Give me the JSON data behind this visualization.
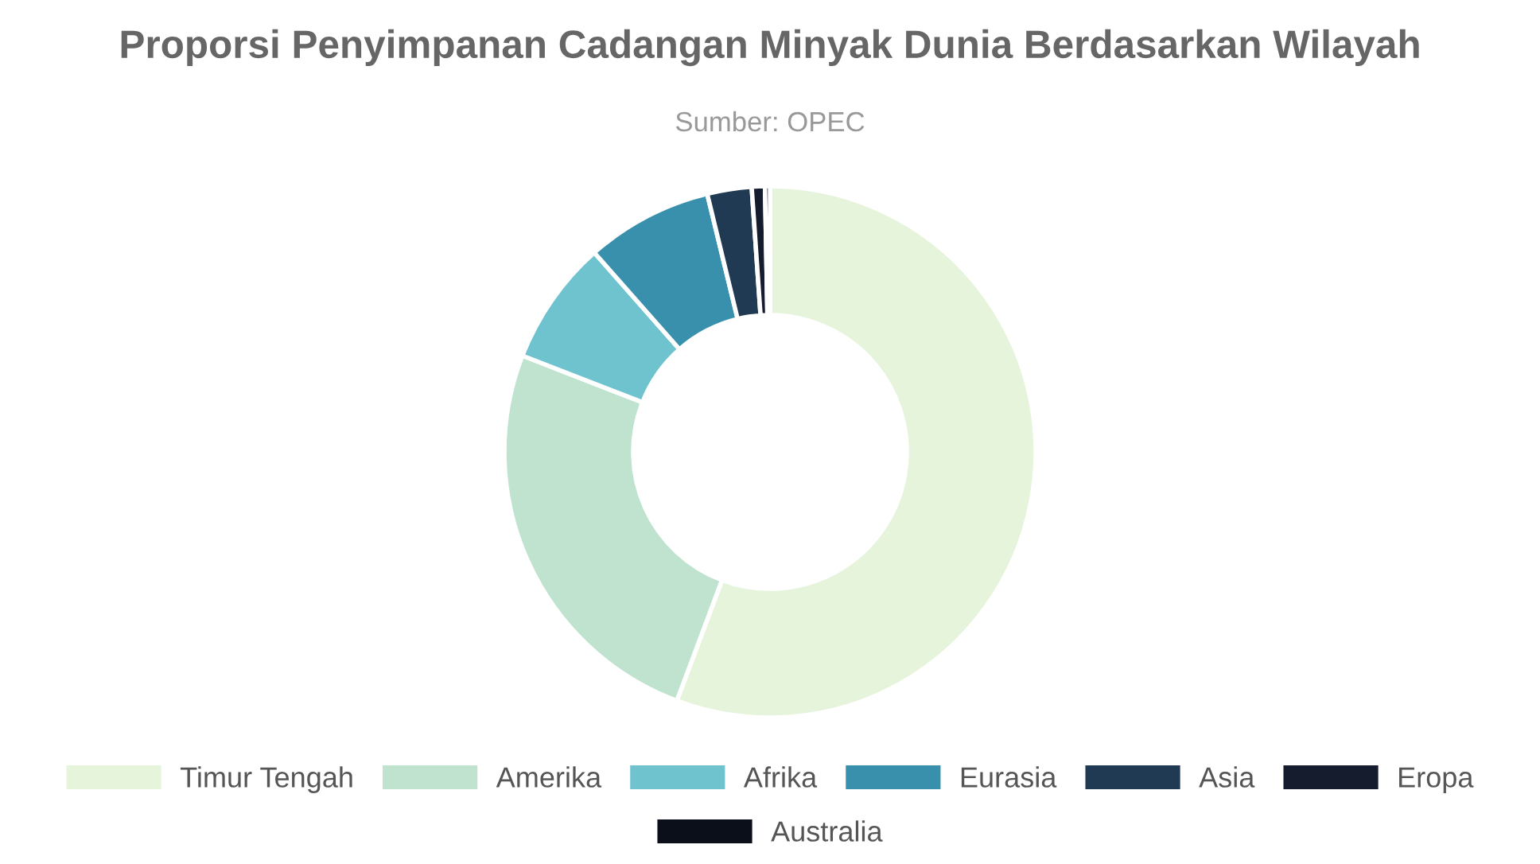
{
  "chart_data": {
    "type": "donut",
    "title": "Proporsi Penyimpanan Cadangan Minyak Dunia Berdasarkan Wilayah",
    "annotations": [
      "Sumber: OPEC"
    ],
    "categories": [
      "Timur Tengah",
      "Amerika",
      "Afrika",
      "Eurasia",
      "Asia",
      "Eropa",
      "Australia"
    ],
    "values": [
      55.7,
      25.2,
      7.6,
      7.7,
      2.7,
      0.8,
      0.3
    ],
    "colors": [
      "#e6f4dc",
      "#bfe3cf",
      "#6fc3cf",
      "#3990ad",
      "#1f3a52",
      "#141c2e",
      "#0b0f19"
    ],
    "legend": "bottom"
  }
}
